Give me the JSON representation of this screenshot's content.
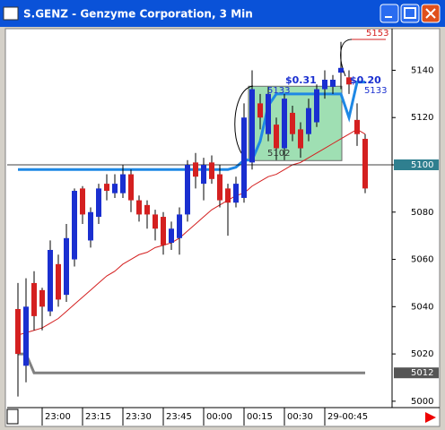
{
  "chart_data": {
    "type": "candlestick",
    "title": "S.GENZ - Genzyme Corporation, 3 Min",
    "categories": [
      null,
      null,
      null,
      "23:00",
      null,
      null,
      null,
      null,
      "23:15",
      null,
      null,
      null,
      null,
      "23:30",
      null,
      null,
      null,
      null,
      "23:45",
      null,
      null,
      null,
      null,
      "00:00",
      null,
      null,
      null,
      null,
      "00:15",
      null,
      null,
      null,
      null,
      "00:30",
      null,
      null,
      null,
      null,
      "29-00:45",
      null,
      null,
      null,
      null,
      null
    ],
    "open": [
      5039,
      5015,
      5050,
      5047,
      5038,
      5058,
      5045,
      5060,
      5090,
      5068,
      5078,
      5092,
      5088,
      5088,
      5096,
      5085,
      5083,
      5079,
      5078,
      5067,
      5069,
      5079,
      5101,
      5092,
      5101,
      5096,
      5090,
      5084,
      5086,
      5101,
      5126,
      5113,
      5117,
      5107,
      5122,
      5115,
      5113,
      5118,
      5132,
      5133,
      5139,
      5137,
      5119,
      5111
    ],
    "high": [
      5050,
      5052,
      5055,
      5048,
      5068,
      5062,
      5075,
      5090,
      5091,
      5082,
      5092,
      5096,
      5096,
      5100,
      5098,
      5087,
      5085,
      5081,
      5080,
      5076,
      5082,
      5102,
      5105,
      5103,
      5104,
      5100,
      5092,
      5095,
      5126,
      5140,
      5130,
      5133,
      5120,
      5130,
      5125,
      5118,
      5128,
      5134,
      5140,
      5138,
      5152,
      5140,
      5126,
      5113
    ],
    "low": [
      5002,
      5008,
      5030,
      5030,
      5036,
      5040,
      5042,
      5057,
      5075,
      5065,
      5075,
      5085,
      5086,
      5086,
      5080,
      5076,
      5073,
      5068,
      5062,
      5064,
      5062,
      5076,
      5090,
      5085,
      5092,
      5082,
      5070,
      5082,
      5084,
      5098,
      5115,
      5110,
      5102,
      5102,
      5110,
      5103,
      5110,
      5116,
      5128,
      5130,
      5132,
      5130,
      5108,
      5088
    ],
    "close": [
      5020,
      5040,
      5036,
      5040,
      5064,
      5043,
      5069,
      5089,
      5079,
      5080,
      5090,
      5089,
      5092,
      5096,
      5085,
      5079,
      5079,
      5073,
      5066,
      5073,
      5079,
      5100,
      5095,
      5100,
      5094,
      5085,
      5084,
      5092,
      5120,
      5132,
      5120,
      5130,
      5107,
      5128,
      5113,
      5107,
      5124,
      5132,
      5136,
      5136,
      5141,
      5134,
      5113,
      5090
    ],
    "up_color": "#1a2fd0",
    "down_color": "#d42020",
    "overlays": [
      {
        "color": "#d42020",
        "values": [
          5028,
          5029,
          5030,
          5031,
          5033,
          5035,
          5038,
          5041,
          5044,
          5047,
          5050,
          5053,
          5055,
          5058,
          5060,
          5062,
          5063,
          5065,
          5066,
          5067,
          5069,
          5072,
          5075,
          5078,
          5081,
          5083,
          5085,
          5087,
          5088,
          5091,
          5093,
          5095,
          5096,
          5098,
          5100,
          5101,
          5103,
          5105,
          5107,
          5109,
          5111,
          5113,
          5115,
          5113
        ]
      },
      {
        "color": "#1e88e5",
        "values": [
          5098,
          5098,
          5098,
          5098,
          5098,
          5098,
          5098,
          5098,
          5098,
          5098,
          5098,
          5098,
          5098,
          5098,
          5098,
          5098,
          5098,
          5098,
          5098,
          5098,
          5098,
          5098,
          5098,
          5098,
          5098,
          5098,
          5098,
          5099,
          5102,
          5102,
          5110,
          5125,
          5130,
          5130,
          5130,
          5130,
          5130,
          5130,
          5130,
          5130,
          5130,
          5120,
          5135,
          5135
        ]
      },
      {
        "color": "#808080",
        "values": [
          5020,
          5020,
          5012,
          5012,
          5012,
          5012,
          5012,
          5012,
          5012,
          5012,
          5012,
          5012,
          5012,
          5012,
          5012,
          5012,
          5012,
          5012,
          5012,
          5012,
          5012,
          5012,
          5012,
          5012,
          5012,
          5012,
          5012,
          5012,
          5012,
          5012,
          5012,
          5012,
          5012,
          5012,
          5012,
          5012,
          5012,
          5012,
          5012,
          5012,
          5012,
          5012,
          5012,
          5012
        ]
      }
    ],
    "markers": [
      {
        "value": 5100,
        "label": "5100"
      },
      {
        "value": 5012,
        "label": "5012"
      }
    ],
    "annotations": [
      "5153",
      "5133",
      "5102",
      "$0.31",
      "$0.20",
      "5133"
    ],
    "ylim": [
      4997.3,
      5157.6
    ],
    "yticks": [
      5000,
      5020,
      5040,
      5060,
      5080,
      5100,
      5120,
      5140
    ]
  }
}
